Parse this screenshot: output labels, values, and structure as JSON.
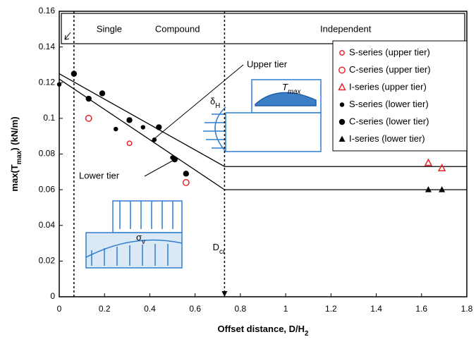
{
  "chart_data": {
    "type": "scatter",
    "xlabel": [
      "Offset distance, D/H",
      "2"
    ],
    "ylabel": [
      "max(T",
      "max",
      ") (kN/m)"
    ],
    "xlim": [
      0,
      1.8
    ],
    "xticks": [
      0,
      0.2,
      0.4,
      0.6,
      0.8,
      1,
      1.2,
      1.4,
      1.6,
      1.8
    ],
    "ylim": [
      0,
      0.16
    ],
    "yticks": [
      0,
      0.02,
      0.04,
      0.06,
      0.08,
      0.1,
      0.12,
      0.14,
      0.16
    ],
    "regions": [
      "Single",
      "Compound",
      "Independent"
    ],
    "boundaries": [
      0.065,
      0.73
    ],
    "dcr_label": [
      "D",
      "cr"
    ],
    "lines": [
      {
        "name": "Upper tier",
        "color": "#000000",
        "x": [
          0,
          0.73,
          1.8
        ],
        "values": [
          0.125,
          0.073,
          0.073
        ]
      },
      {
        "name": "Lower tier",
        "color": "#000000",
        "x": [
          0,
          0.73,
          1.8
        ],
        "values": [
          0.122,
          0.06,
          0.06
        ]
      }
    ],
    "series": [
      {
        "name": "S-series (upper tier)",
        "color": "#e8262a",
        "marker": "open-circle-small",
        "x": [
          0.31
        ],
        "values": [
          0.086
        ]
      },
      {
        "name": "C-series (upper tier)",
        "color": "#e8262a",
        "marker": "open-circle",
        "x": [
          0.13,
          0.56
        ],
        "values": [
          0.1,
          0.064
        ]
      },
      {
        "name": "I-series (upper tier)",
        "color": "#e8262a",
        "marker": "open-triangle",
        "x": [
          1.63,
          1.69
        ],
        "values": [
          0.075,
          0.072
        ]
      },
      {
        "name": "S-series (lower tier)",
        "color": "#000000",
        "marker": "circle-small",
        "x": [
          0,
          0.25,
          0.37,
          0.42,
          0.5
        ],
        "values": [
          0.119,
          0.094,
          0.095,
          0.088,
          0.078
        ]
      },
      {
        "name": "C-series (lower tier)",
        "color": "#000000",
        "marker": "circle",
        "x": [
          0.065,
          0.13,
          0.19,
          0.31,
          0.44,
          0.51,
          0.56
        ],
        "values": [
          0.125,
          0.111,
          0.114,
          0.099,
          0.095,
          0.077,
          0.069
        ]
      },
      {
        "name": "I-series (lower tier)",
        "color": "#000000",
        "marker": "triangle",
        "x": [
          1.63,
          1.69
        ],
        "values": [
          0.06,
          0.06
        ]
      }
    ],
    "diagram_labels": {
      "tmax": [
        "T",
        "max"
      ],
      "dh": [
        "δ",
        "H"
      ],
      "sv": [
        "σ",
        "v"
      ]
    }
  }
}
